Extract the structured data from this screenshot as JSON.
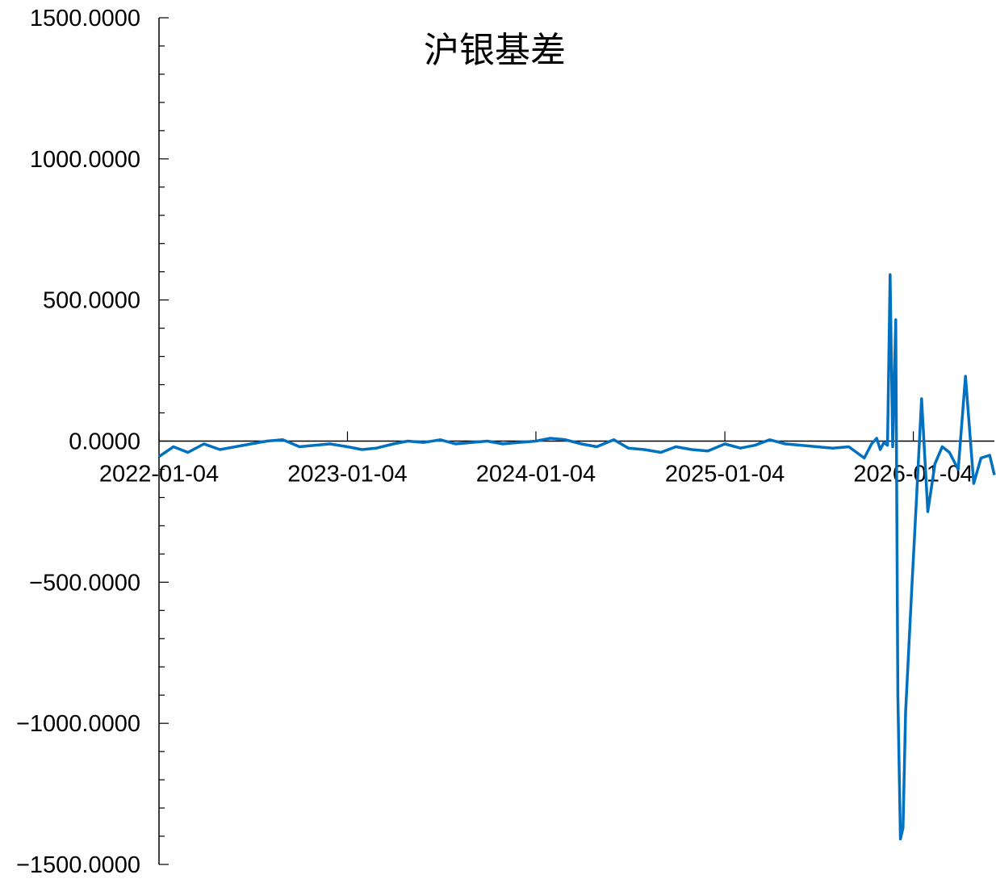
{
  "chart_data": {
    "type": "line",
    "title": "沪银基差",
    "xlabel": "",
    "ylabel": "",
    "ylim": [
      -1500,
      1500
    ],
    "xlim": [
      "2022-01-04",
      "2026-06-10"
    ],
    "y_ticks": [
      1500,
      1000,
      500,
      0,
      -500,
      -1000,
      -1500
    ],
    "y_tick_labels": [
      "1500.0000",
      "1000.0000",
      "500.0000",
      "0.0000",
      "−500.0000",
      "−1000.0000",
      "−1500.0000"
    ],
    "x_ticks": [
      "2022-01-04",
      "2023-01-04",
      "2024-01-04",
      "2025-01-04",
      "2026-01-04"
    ],
    "x_tick_labels": [
      "2022-01-04",
      "2023-01-04",
      "2024-01-04",
      "2025-01-04",
      "2026-01-04"
    ],
    "grid": false,
    "legend": "none",
    "line_color": "#0070c0",
    "series": [
      {
        "x": [
          "2022-01-04",
          "2022-02-01",
          "2022-03-01",
          "2022-04-01",
          "2022-05-02",
          "2022-06-01",
          "2022-07-01",
          "2022-08-01",
          "2022-09-01",
          "2022-10-03",
          "2022-11-01",
          "2022-12-01",
          "2023-01-04",
          "2023-02-01",
          "2023-03-01",
          "2023-04-03",
          "2023-05-01",
          "2023-06-01",
          "2023-07-03",
          "2023-08-01",
          "2023-09-01",
          "2023-10-02",
          "2023-11-01",
          "2023-12-01",
          "2024-01-04",
          "2024-02-01",
          "2024-03-01",
          "2024-04-01",
          "2024-05-01",
          "2024-06-03",
          "2024-07-01",
          "2024-08-01",
          "2024-09-02",
          "2024-10-01",
          "2024-11-01",
          "2024-12-02",
          "2025-01-04",
          "2025-02-03",
          "2025-03-03",
          "2025-04-01",
          "2025-05-01",
          "2025-06-02",
          "2025-07-01",
          "2025-08-01",
          "2025-09-01",
          "2025-10-01",
          "2025-10-15",
          "2025-10-25",
          "2025-11-01",
          "2025-11-08",
          "2025-11-15",
          "2025-11-20",
          "2025-11-25",
          "2025-12-01",
          "2025-12-05",
          "2025-12-10",
          "2025-12-15",
          "2025-12-20",
          "2026-01-01",
          "2026-01-10",
          "2026-01-20",
          "2026-02-01",
          "2026-02-15",
          "2026-03-01",
          "2026-03-15",
          "2026-04-01",
          "2026-04-15",
          "2026-05-01",
          "2026-05-15",
          "2026-06-01",
          "2026-06-10"
        ],
        "values": [
          -55,
          -20,
          -40,
          -10,
          -30,
          -20,
          -10,
          0,
          5,
          -20,
          -15,
          -10,
          -20,
          -30,
          -25,
          -10,
          0,
          -5,
          5,
          -10,
          -5,
          0,
          -10,
          -5,
          0,
          10,
          5,
          -10,
          -20,
          5,
          -25,
          -30,
          -40,
          -20,
          -30,
          -35,
          -10,
          -25,
          -15,
          5,
          -10,
          -15,
          -20,
          -25,
          -20,
          -60,
          -10,
          10,
          -30,
          -5,
          -15,
          590,
          -20,
          430,
          -900,
          -1410,
          -1370,
          -960,
          -520,
          -210,
          150,
          -250,
          -80,
          -20,
          -40,
          -100,
          230,
          -150,
          -60,
          -50,
          -120
        ]
      }
    ]
  }
}
